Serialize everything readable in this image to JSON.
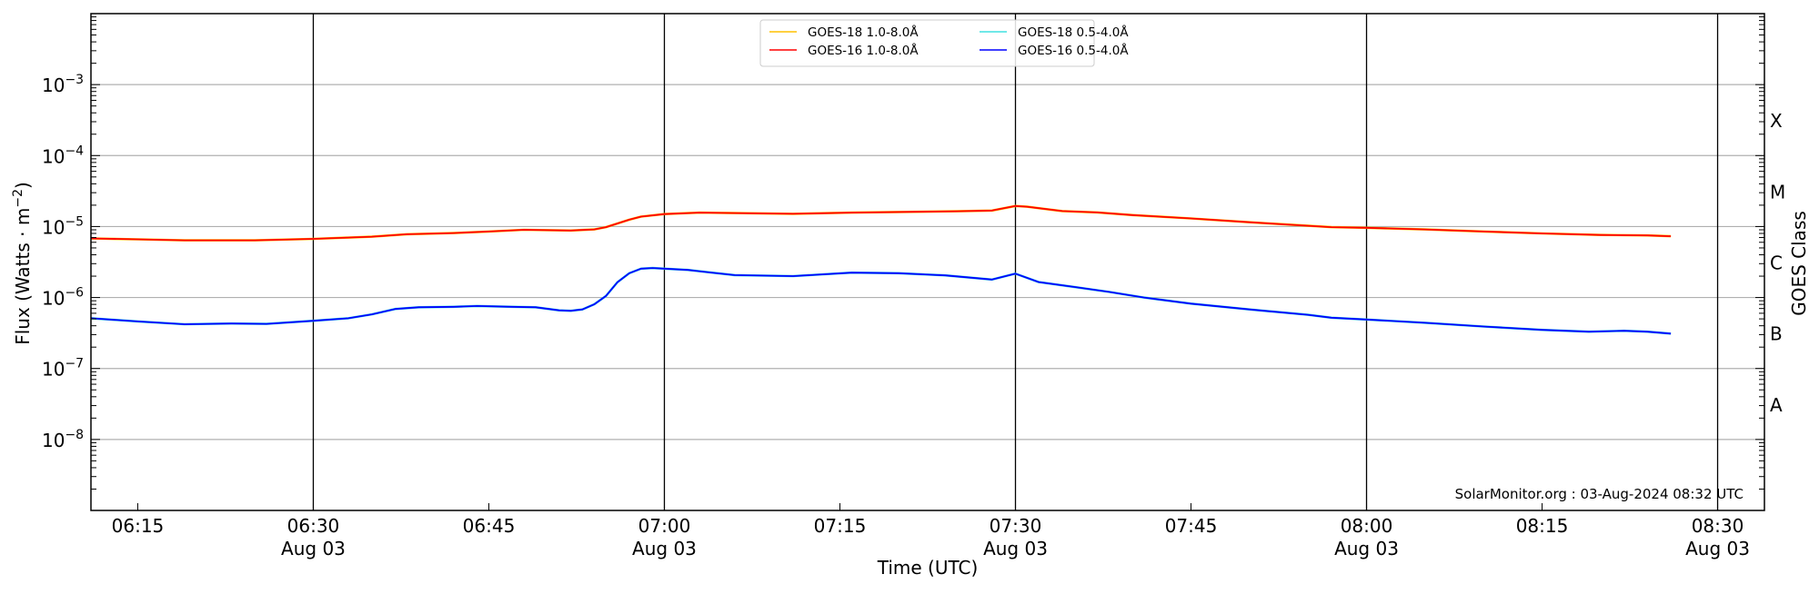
{
  "chart_data": {
    "type": "line",
    "xlabel": "Time (UTC)",
    "ylabel": "Flux (Watts · m⁻²)",
    "ylabel_parts": {
      "main": "Flux (Watts · m",
      "exp": "−2",
      "end": ")"
    },
    "right_ylabel": "GOES Class",
    "yscale": "log",
    "ylim": [
      1e-09,
      0.01
    ],
    "xlim": [
      "06:11",
      "08:34"
    ],
    "grid": "horizontal at decades",
    "legend_position": "top-center",
    "ytick_labels": [
      {
        "value": 0.001,
        "base": "10",
        "exp": "−3"
      },
      {
        "value": 0.0001,
        "base": "10",
        "exp": "−4"
      },
      {
        "value": 1e-05,
        "base": "10",
        "exp": "−5"
      },
      {
        "value": 1e-06,
        "base": "10",
        "exp": "−6"
      },
      {
        "value": 1e-07,
        "base": "10",
        "exp": "−7"
      },
      {
        "value": 1e-08,
        "base": "10",
        "exp": "−8"
      }
    ],
    "goes_classes": [
      {
        "label": "X",
        "log_center": -3.5
      },
      {
        "label": "M",
        "log_center": -4.5
      },
      {
        "label": "C",
        "log_center": -5.5
      },
      {
        "label": "B",
        "log_center": -6.5
      },
      {
        "label": "A",
        "log_center": -7.5
      }
    ],
    "xticks": [
      {
        "time": "06:15",
        "label": "06:15",
        "date": ""
      },
      {
        "time": "06:30",
        "label": "06:30",
        "date": "Aug 03"
      },
      {
        "time": "06:45",
        "label": "06:45",
        "date": ""
      },
      {
        "time": "07:00",
        "label": "07:00",
        "date": "Aug 03"
      },
      {
        "time": "07:15",
        "label": "07:15",
        "date": ""
      },
      {
        "time": "07:30",
        "label": "07:30",
        "date": "Aug 03"
      },
      {
        "time": "07:45",
        "label": "07:45",
        "date": ""
      },
      {
        "time": "08:00",
        "label": "08:00",
        "date": "Aug 03"
      },
      {
        "time": "08:15",
        "label": "08:15",
        "date": ""
      },
      {
        "time": "08:30",
        "label": "08:30",
        "date": "Aug 03"
      }
    ],
    "vertical_lines": [
      "06:30",
      "07:00",
      "07:30",
      "08:00",
      "08:30"
    ],
    "annotation": "SolarMonitor.org : 03-Aug-2024 08:32 UTC",
    "series": [
      {
        "name": "GOES-18 1.0-8.0Å",
        "color": "#ffc000",
        "same_as": 2
      },
      {
        "name": "GOES-18 0.5-4.0Å",
        "color": "#40e0e0",
        "same_as": 3
      },
      {
        "name": "GOES-16 1.0-8.0Å",
        "color": "#ff0000",
        "x": [
          "06:11",
          "06:15",
          "06:19",
          "06:25",
          "06:30",
          "06:35",
          "06:38",
          "06:42",
          "06:45",
          "06:48",
          "06:52",
          "06:54",
          "06:55",
          "06:57",
          "06:58",
          "07:00",
          "07:03",
          "07:11",
          "07:16",
          "07:25",
          "07:28",
          "07:30",
          "07:31",
          "07:34",
          "07:37",
          "07:40",
          "07:45",
          "07:50",
          "07:57",
          "08:00",
          "08:05",
          "08:10",
          "08:15",
          "08:20",
          "08:24",
          "08:26"
        ],
        "values": [
          6.8e-06,
          6.6e-06,
          6.4e-06,
          6.4e-06,
          6.7e-06,
          7.2e-06,
          7.8e-06,
          8.1e-06,
          8.5e-06,
          9e-06,
          8.8e-06,
          9.1e-06,
          9.8e-06,
          1.25e-05,
          1.38e-05,
          1.5e-05,
          1.57e-05,
          1.51e-05,
          1.57e-05,
          1.64e-05,
          1.68e-05,
          1.95e-05,
          1.9e-05,
          1.65e-05,
          1.58e-05,
          1.45e-05,
          1.3e-05,
          1.15e-05,
          9.8e-06,
          9.6e-06,
          9.1e-06,
          8.5e-06,
          8e-06,
          7.6e-06,
          7.5e-06,
          7.3e-06
        ]
      },
      {
        "name": "GOES-16 0.5-4.0Å",
        "color": "#0000ff",
        "x": [
          "06:11",
          "06:15",
          "06:19",
          "06:23",
          "06:26",
          "06:30",
          "06:33",
          "06:35",
          "06:37",
          "06:39",
          "06:42",
          "06:44",
          "06:47",
          "06:49",
          "06:51",
          "06:52",
          "06:53",
          "06:54",
          "06:55",
          "06:56",
          "06:57",
          "06:58",
          "06:59",
          "07:00",
          "07:02",
          "07:04",
          "07:06",
          "07:11",
          "07:16",
          "07:20",
          "07:24",
          "07:28",
          "07:30",
          "07:32",
          "07:35",
          "07:38",
          "07:41",
          "07:45",
          "07:50",
          "07:55",
          "07:57",
          "08:00",
          "08:05",
          "08:10",
          "08:15",
          "08:19",
          "08:22",
          "08:24",
          "08:26"
        ],
        "values": [
          5.1e-07,
          4.6e-07,
          4.2e-07,
          4.3e-07,
          4.25e-07,
          4.7e-07,
          5.1e-07,
          5.8e-07,
          6.9e-07,
          7.3e-07,
          7.4e-07,
          7.6e-07,
          7.4e-07,
          7.3e-07,
          6.6e-07,
          6.5e-07,
          6.8e-07,
          8e-07,
          1.05e-06,
          1.65e-06,
          2.2e-06,
          2.55e-06,
          2.6e-06,
          2.55e-06,
          2.45e-06,
          2.25e-06,
          2.07e-06,
          2e-06,
          2.24e-06,
          2.2e-06,
          2.05e-06,
          1.79e-06,
          2.17e-06,
          1.65e-06,
          1.41e-06,
          1.2e-06,
          1e-06,
          8.2e-07,
          6.8e-07,
          5.7e-07,
          5.2e-07,
          4.9e-07,
          4.4e-07,
          3.9e-07,
          3.5e-07,
          3.3e-07,
          3.4e-07,
          3.3e-07,
          3.1e-07
        ]
      }
    ]
  }
}
